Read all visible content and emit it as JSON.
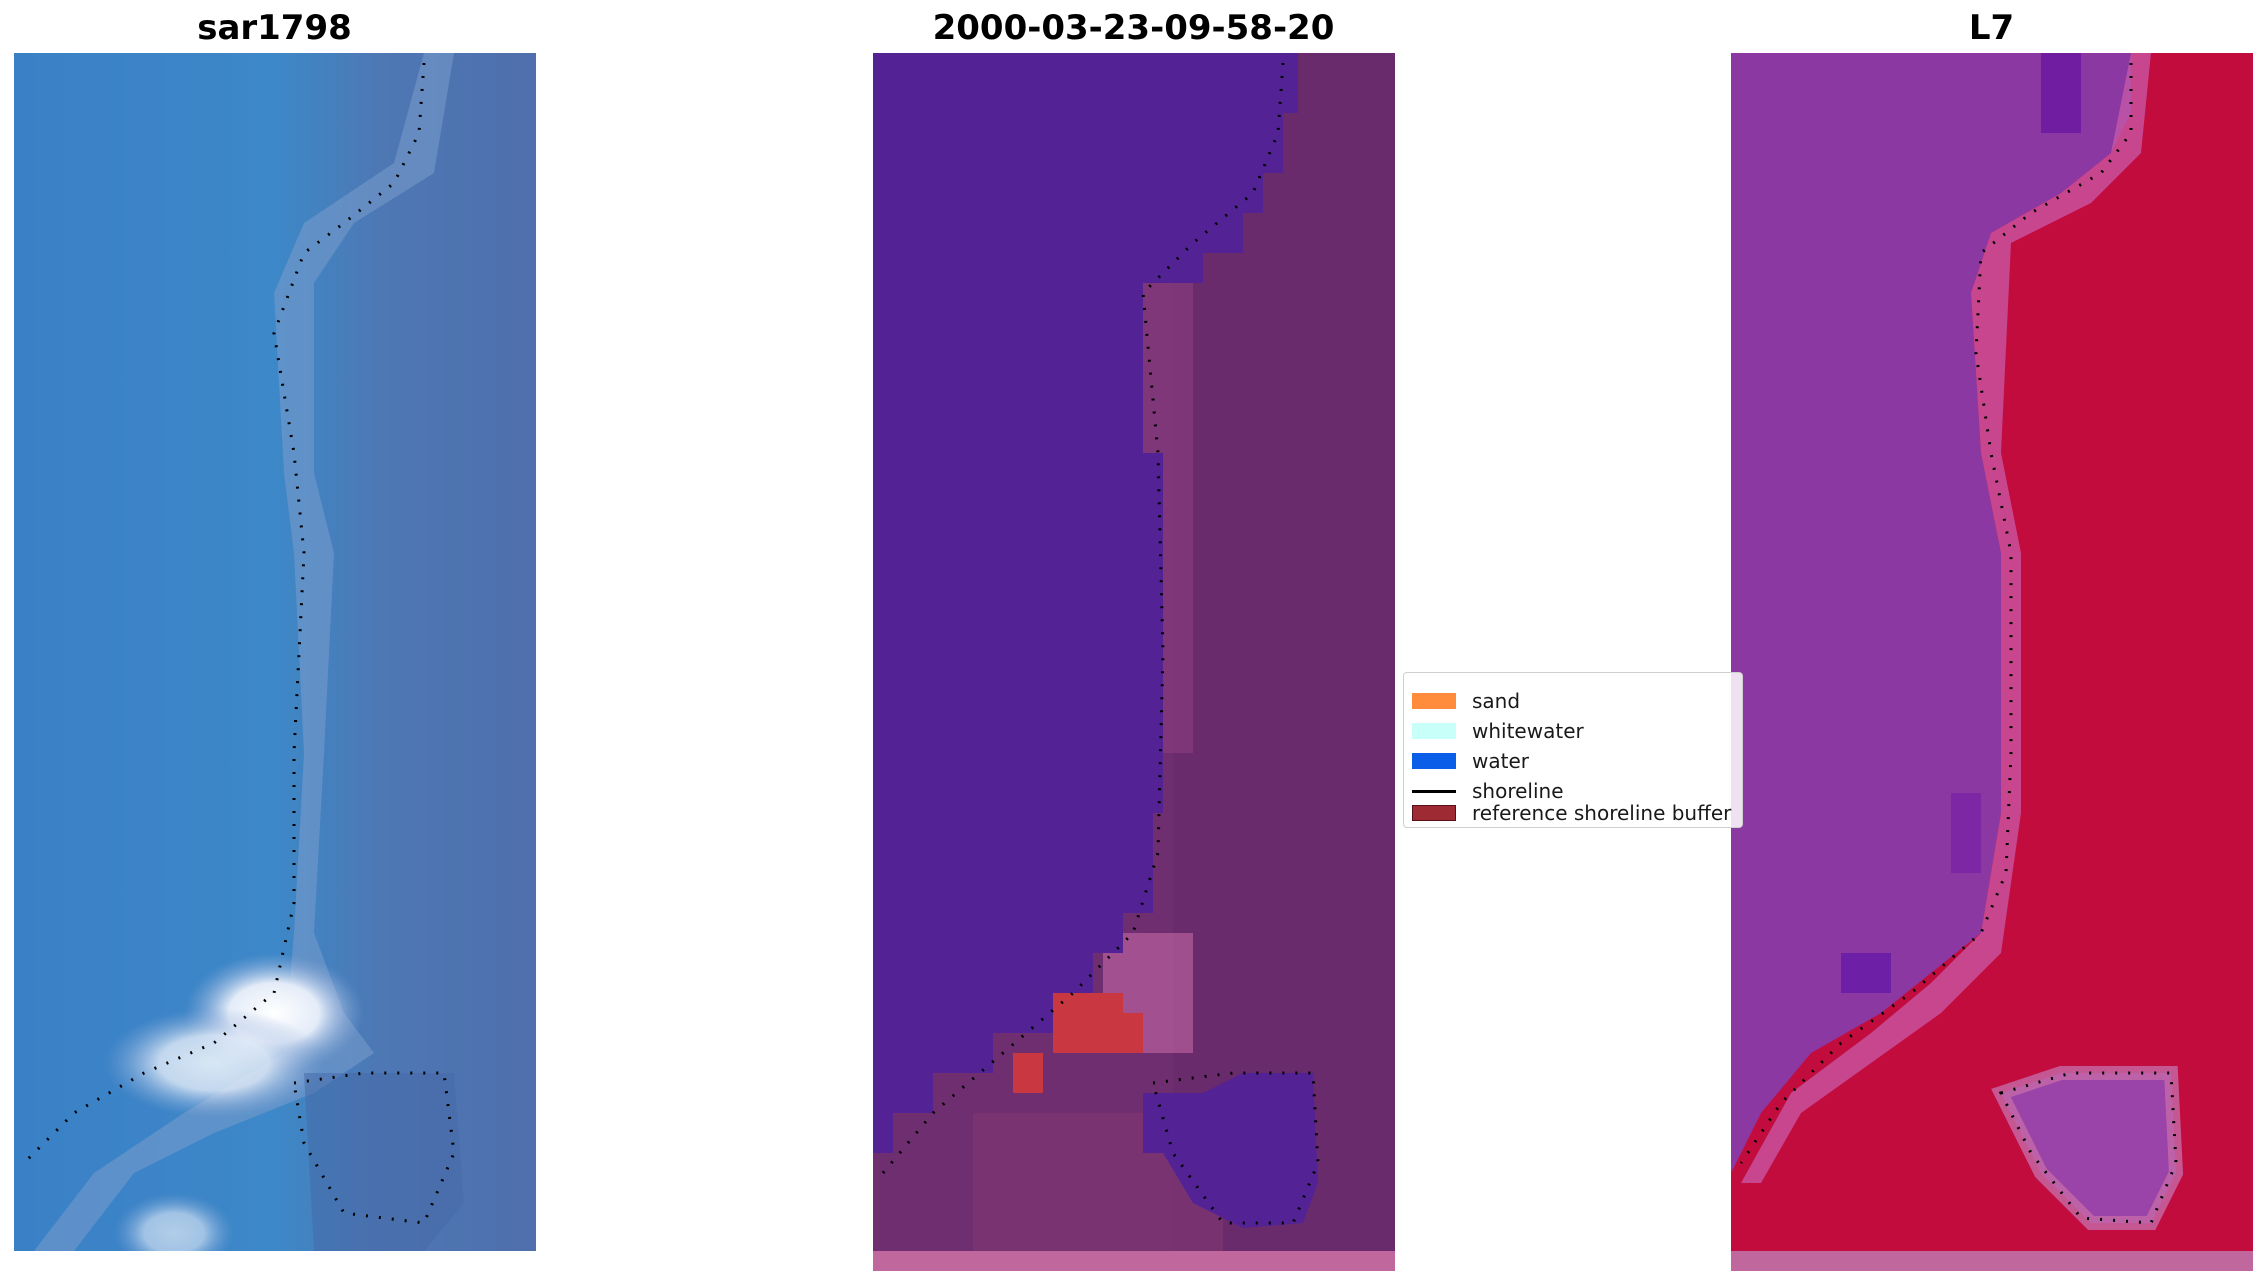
{
  "panels": [
    {
      "id": "rgb",
      "title": "sar1798"
    },
    {
      "id": "classified",
      "title": "2000-03-23-09-58-20"
    },
    {
      "id": "index",
      "title": "L7"
    }
  ],
  "legend": {
    "items": [
      {
        "label": "sand",
        "color": "#ff8c3d",
        "kind": "patch"
      },
      {
        "label": "whitewater",
        "color": "#c8fff8",
        "kind": "patch"
      },
      {
        "label": "water",
        "color": "#0a5ee8",
        "kind": "patch"
      },
      {
        "label": "shoreline",
        "color": "#000000",
        "kind": "line"
      },
      {
        "label": "reference shoreline buffer",
        "color": "#9e2b33",
        "kind": "patch"
      }
    ]
  },
  "colors": {
    "rgb_water": "#3a7fc4",
    "rgb_land": "#4f74b0",
    "rgb_surf": "#f2f4fa",
    "class_water": "#532395",
    "class_land": "#6e2d6e",
    "class_buffer_red": "#c93840",
    "index_water": "#8b38a2",
    "index_land": "#c10c3d"
  }
}
